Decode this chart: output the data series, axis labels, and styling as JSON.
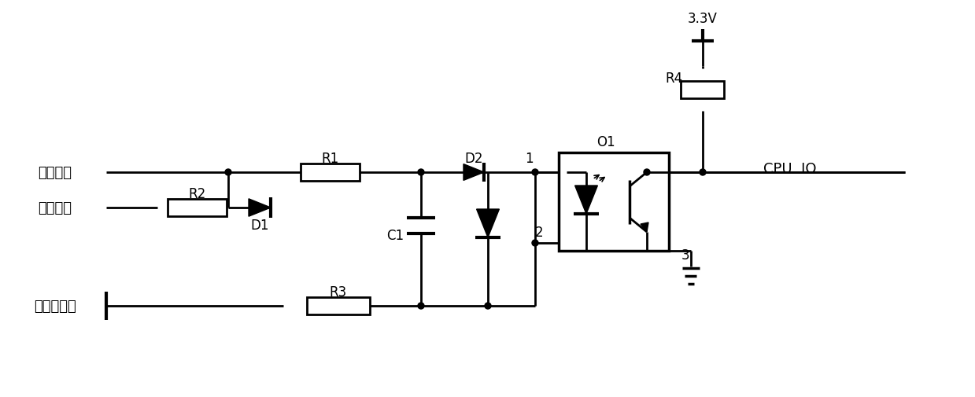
{
  "bg_color": "#ffffff",
  "line_color": "#000000",
  "lw": 2.0,
  "figsize": [
    12.39,
    5.06
  ],
  "dpi": 100,
  "labels": {
    "kai_ru_xin_hao": "开入信号",
    "zi_jian_xin_hao": "自检信号",
    "kai_ru_dian_yuan_di": "开入电源地",
    "R1": "R1",
    "R2": "R2",
    "R3": "R3",
    "R4": "R4",
    "D1": "D1",
    "D2": "D2",
    "C1": "C1",
    "O1": "O1",
    "n1": "1",
    "n2": "2",
    "n3": "3",
    "cpu": "CPU  IO",
    "v33": "3.3V"
  }
}
